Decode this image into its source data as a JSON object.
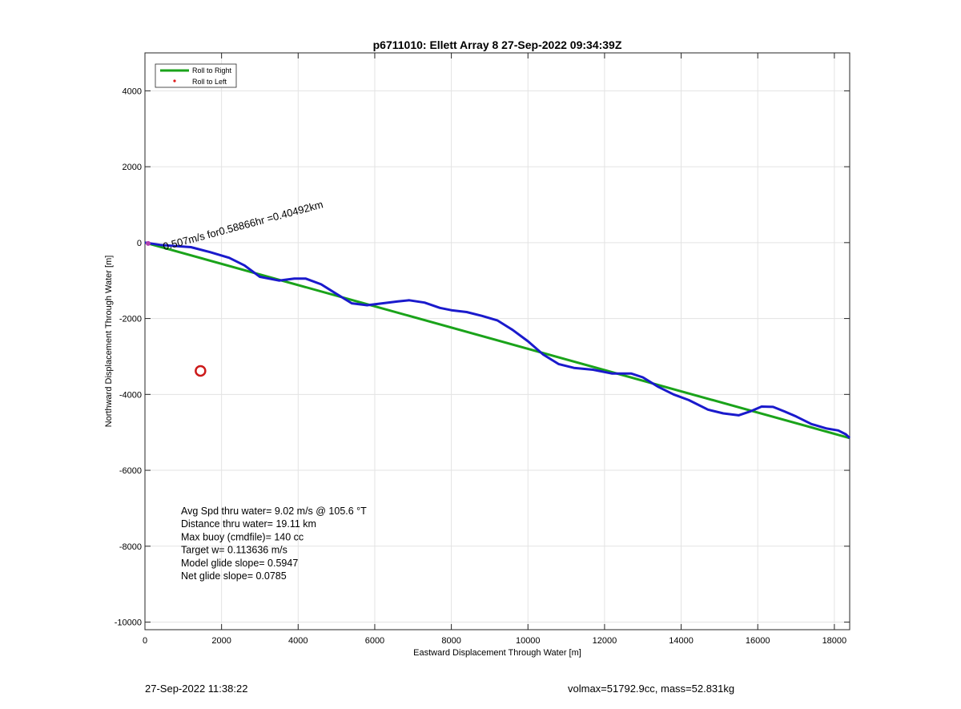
{
  "chart_data": {
    "type": "line",
    "title": "p6711010: Ellett Array 8 27-Sep-2022 09:34:39Z",
    "xlabel": "Eastward Displacement Through Water [m]",
    "ylabel": "Northward Displacement Through Water [m]",
    "xlim": [
      0,
      18400
    ],
    "ylim": [
      -10200,
      5000
    ],
    "xticks": [
      0,
      2000,
      4000,
      6000,
      8000,
      10000,
      12000,
      14000,
      16000,
      18000
    ],
    "yticks": [
      4000,
      2000,
      0,
      -2000,
      -4000,
      -6000,
      -8000,
      -10000
    ],
    "grid": true,
    "legend": {
      "placement": "top-left",
      "entries": [
        {
          "label": "Roll to Right",
          "color": "#1aa31a",
          "style": "line"
        },
        {
          "label": "Roll to Left",
          "color": "#e01a1a",
          "style": "dot"
        }
      ]
    },
    "series": [
      {
        "color": "#1aa31a",
        "x": [
          0,
          18400
        ],
        "y": [
          0,
          -5150
        ]
      },
      {
        "color": "#1a1acc",
        "x": [
          0,
          400,
          800,
          1200,
          1700,
          2200,
          2600,
          3000,
          3500,
          3900,
          4200,
          4600,
          5000,
          5400,
          5800,
          6200,
          6600,
          6900,
          7300,
          7700,
          8000,
          8400,
          8800,
          9200,
          9600,
          10000,
          10400,
          10800,
          11200,
          11700,
          12200,
          12700,
          13000,
          13400,
          13800,
          14200,
          14700,
          15100,
          15500,
          15800,
          16100,
          16400,
          16700,
          17000,
          17400,
          17800,
          18100,
          18300,
          18400
        ],
        "y": [
          0,
          -60,
          -90,
          -120,
          -250,
          -400,
          -600,
          -900,
          -1000,
          -950,
          -950,
          -1100,
          -1350,
          -1600,
          -1650,
          -1600,
          -1550,
          -1520,
          -1580,
          -1720,
          -1780,
          -1830,
          -1930,
          -2050,
          -2300,
          -2600,
          -2950,
          -3200,
          -3300,
          -3350,
          -3450,
          -3450,
          -3550,
          -3800,
          -4000,
          -4150,
          -4400,
          -4500,
          -4550,
          -4450,
          -4320,
          -4330,
          -4450,
          -4580,
          -4780,
          -4900,
          -4950,
          -5050,
          -5150
        ]
      }
    ],
    "dive_start_marker": {
      "x": 1450,
      "y": -3380,
      "color": "#cc1a1a"
    },
    "annotations": [
      {
        "text": "0.507m/s for0.58866hr =0.40492km",
        "x": 500,
        "y": -200,
        "angle_deg": -15
      }
    ],
    "stats": [
      "Avg Spd thru water=  9.02 m/s @ 105.6 °T",
      "Distance thru water= 19.11 km",
      "Max buoy (cmdfile)= 140 cc",
      "Target w= 0.113636 m/s",
      "Model glide slope= 0.5947",
      "Net glide slope= 0.0785"
    ]
  },
  "footer": {
    "timestamp": "27-Sep-2022 11:38:22",
    "volume": "volmax=51792.9cc, mass=52.831kg"
  }
}
